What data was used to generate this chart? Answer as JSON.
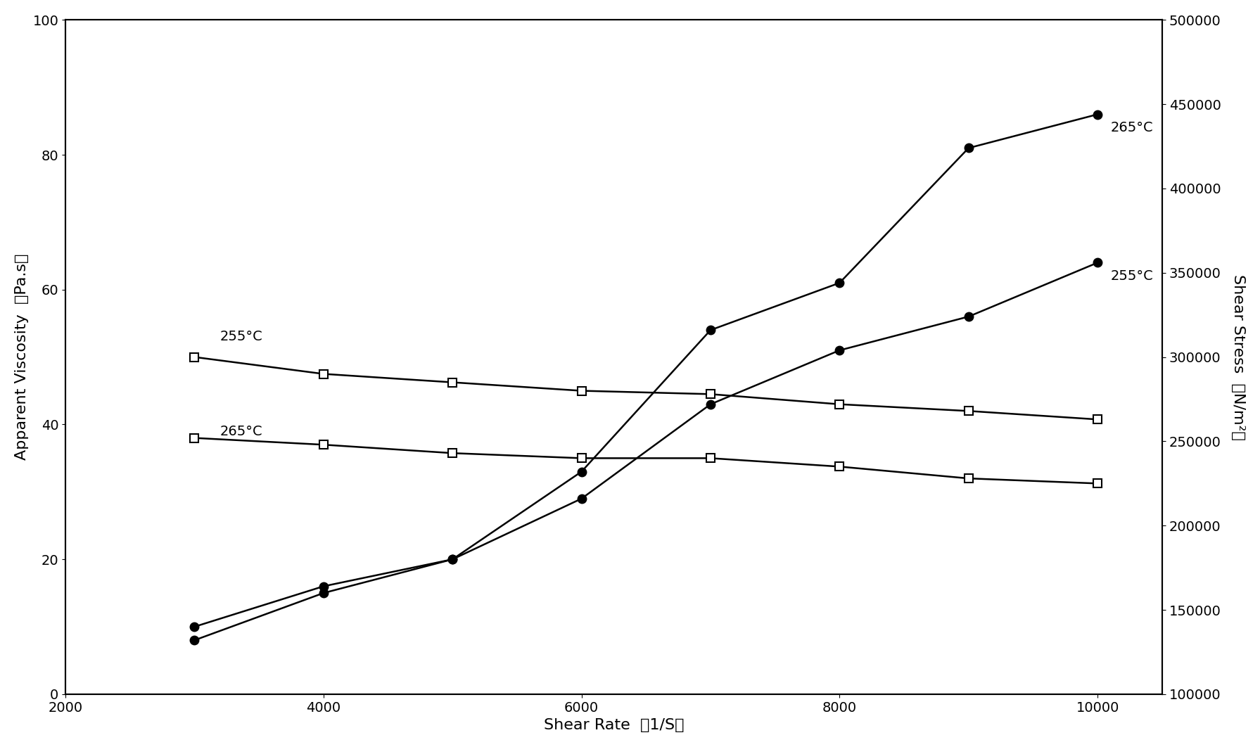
{
  "shear_rate": [
    3000,
    4000,
    5000,
    6000,
    7000,
    8000,
    9000,
    10000
  ],
  "viscosity_265": [
    10,
    16,
    20,
    33,
    54,
    61,
    81,
    86
  ],
  "viscosity_255": [
    8,
    15,
    20,
    29,
    43,
    51,
    56,
    64
  ],
  "stress_255": [
    300000,
    290000,
    285000,
    280000,
    278000,
    272000,
    268000,
    263000
  ],
  "stress_265": [
    252000,
    248000,
    243000,
    240000,
    240000,
    235000,
    228000,
    225000
  ],
  "xlabel": "Shear Rate  （1/S）",
  "ylabel_left": "Apparent Viscosity  （Pa.s）",
  "ylabel_right": "Shear Stress  （N/m²）",
  "xlim": [
    2000,
    10500
  ],
  "ylim_left": [
    0,
    100
  ],
  "ylim_right": [
    100000,
    500000
  ],
  "xticks": [
    2000,
    4000,
    6000,
    8000,
    10000
  ],
  "yticks_left": [
    0,
    20,
    40,
    60,
    80,
    100
  ],
  "yticks_right": [
    100000,
    150000,
    200000,
    250000,
    300000,
    350000,
    400000,
    450000,
    500000
  ],
  "ann_265_right_x": 10100,
  "ann_265_right_y": 84,
  "ann_255_right_x": 10100,
  "ann_255_right_y": 62,
  "ann_255_left_x": 3200,
  "ann_255_left_y": 53,
  "ann_265_left_x": 3200,
  "ann_265_left_y": 39,
  "label_265": "265°C",
  "label_255": "255°C",
  "line_color": "#000000",
  "background_color": "#ffffff",
  "markersize": 9,
  "linewidth": 1.8,
  "fontsize_label": 16,
  "fontsize_tick": 14,
  "fontsize_ann": 14,
  "fig_width": 17.91,
  "fig_height": 10.62,
  "dpi": 100
}
